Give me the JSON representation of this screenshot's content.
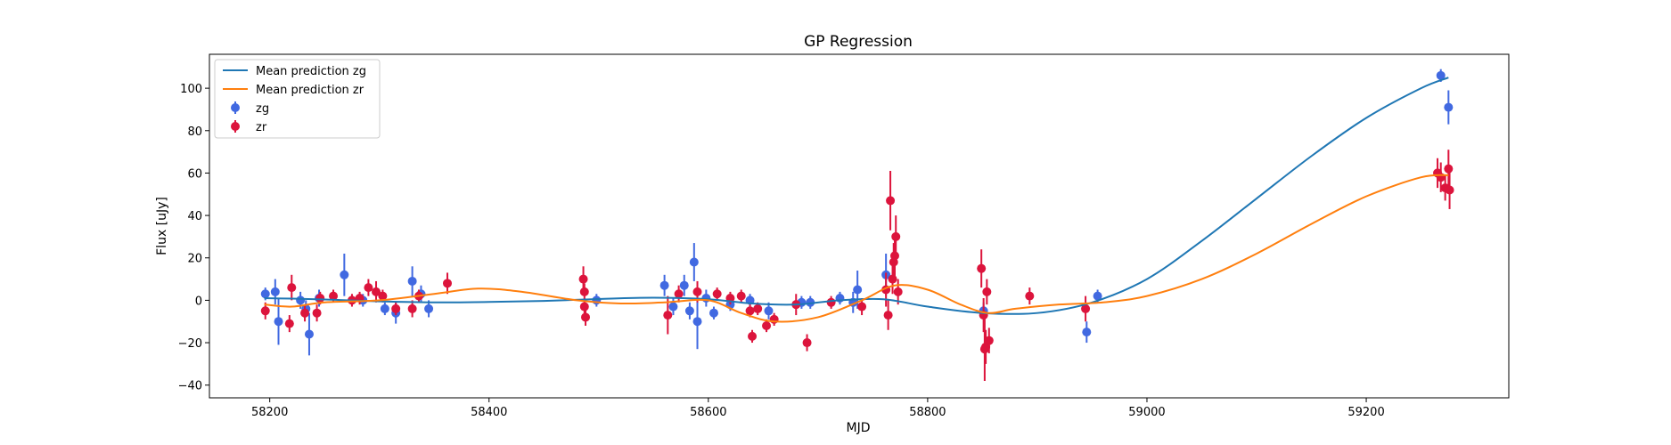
{
  "chart_data": {
    "type": "scatter",
    "title": "GP Regression",
    "xlabel": "MJD",
    "ylabel": "Flux [uJy]",
    "xlim": [
      58145,
      59330
    ],
    "ylim": [
      -46,
      116
    ],
    "xticks": [
      58200,
      58400,
      58600,
      58800,
      59000,
      59200
    ],
    "yticks": [
      -40,
      -20,
      0,
      20,
      40,
      60,
      80,
      100
    ],
    "grid": false,
    "legend_position": "top-left",
    "colors": {
      "zg_line": "#1f77b4",
      "zr_line": "#ff7f0e",
      "zg_points": "#4169e1",
      "zr_points": "#dc143c"
    },
    "legend": [
      {
        "label": "Mean prediction zg",
        "kind": "line",
        "color": "#1f77b4"
      },
      {
        "label": "Mean prediction zr",
        "kind": "line",
        "color": "#ff7f0e"
      },
      {
        "label": "zg",
        "kind": "errorbar",
        "color": "#4169e1"
      },
      {
        "label": "zr",
        "kind": "errorbar",
        "color": "#dc143c"
      }
    ],
    "lines": [
      {
        "name": "Mean prediction zg",
        "color": "#1f77b4",
        "x": [
          58195,
          58220,
          58260,
          58300,
          58350,
          58400,
          58450,
          58500,
          58550,
          58600,
          58640,
          58680,
          58720,
          58760,
          58800,
          58850,
          58900,
          58950,
          59000,
          59050,
          59100,
          59150,
          59200,
          59250,
          59275
        ],
        "y": [
          1,
          0.8,
          0.2,
          -0.5,
          -1,
          -0.8,
          -0.3,
          0.6,
          1.2,
          0.5,
          -1.5,
          -2,
          0,
          0.5,
          -3,
          -6,
          -6,
          -1,
          10,
          28,
          48,
          68,
          86,
          100,
          105
        ]
      },
      {
        "name": "Mean prediction zr",
        "color": "#ff7f0e",
        "x": [
          58195,
          58220,
          58250,
          58300,
          58350,
          58390,
          58430,
          58480,
          58520,
          58560,
          58600,
          58630,
          58660,
          58700,
          58740,
          58770,
          58800,
          58830,
          58855,
          58880,
          58920,
          58960,
          59000,
          59050,
          59100,
          59150,
          59200,
          59250,
          59275
        ],
        "y": [
          -2,
          -3,
          -1,
          0,
          3,
          5.5,
          4,
          0,
          -1.5,
          -1,
          0,
          -6,
          -10,
          -8,
          0,
          7,
          5,
          -2,
          -6,
          -4,
          -2,
          -1,
          2,
          10,
          22,
          36,
          49,
          58,
          59
        ]
      }
    ],
    "series": [
      {
        "name": "zg",
        "color": "#4169e1",
        "points": [
          {
            "x": 58196,
            "y": 3,
            "err": 3
          },
          {
            "x": 58205,
            "y": 4,
            "err": 6
          },
          {
            "x": 58208,
            "y": -10,
            "err": 11
          },
          {
            "x": 58228,
            "y": 0,
            "err": 4
          },
          {
            "x": 58233,
            "y": -4,
            "err": 4
          },
          {
            "x": 58236,
            "y": -16,
            "err": 10
          },
          {
            "x": 58245,
            "y": 1,
            "err": 4
          },
          {
            "x": 58268,
            "y": 12,
            "err": 10
          },
          {
            "x": 58285,
            "y": 0,
            "err": 3
          },
          {
            "x": 58305,
            "y": -4,
            "err": 3
          },
          {
            "x": 58315,
            "y": -6,
            "err": 5
          },
          {
            "x": 58330,
            "y": 9,
            "err": 7
          },
          {
            "x": 58338,
            "y": 3,
            "err": 4
          },
          {
            "x": 58345,
            "y": -4,
            "err": 4
          },
          {
            "x": 58498,
            "y": 0,
            "err": 3
          },
          {
            "x": 58560,
            "y": 7,
            "err": 5
          },
          {
            "x": 58568,
            "y": -3,
            "err": 4
          },
          {
            "x": 58578,
            "y": 7,
            "err": 5
          },
          {
            "x": 58583,
            "y": -5,
            "err": 4
          },
          {
            "x": 58587,
            "y": 18,
            "err": 9
          },
          {
            "x": 58590,
            "y": -10,
            "err": 13
          },
          {
            "x": 58598,
            "y": 1,
            "err": 4
          },
          {
            "x": 58605,
            "y": -6,
            "err": 3
          },
          {
            "x": 58620,
            "y": -2,
            "err": 3
          },
          {
            "x": 58638,
            "y": 0,
            "err": 3
          },
          {
            "x": 58655,
            "y": -5,
            "err": 4
          },
          {
            "x": 58685,
            "y": -1,
            "err": 3
          },
          {
            "x": 58693,
            "y": -1,
            "err": 3
          },
          {
            "x": 58720,
            "y": 1,
            "err": 3
          },
          {
            "x": 58732,
            "y": -1,
            "err": 5
          },
          {
            "x": 58736,
            "y": 5,
            "err": 9
          },
          {
            "x": 58762,
            "y": 12,
            "err": 10
          },
          {
            "x": 58851,
            "y": -5,
            "err": 4
          },
          {
            "x": 58945,
            "y": -15,
            "err": 5
          },
          {
            "x": 58955,
            "y": 2,
            "err": 3
          },
          {
            "x": 59268,
            "y": 106,
            "err": 3
          },
          {
            "x": 59275,
            "y": 91,
            "err": 8
          }
        ]
      },
      {
        "name": "zr",
        "color": "#dc143c",
        "points": [
          {
            "x": 58196,
            "y": -5,
            "err": 4
          },
          {
            "x": 58218,
            "y": -11,
            "err": 4
          },
          {
            "x": 58220,
            "y": 6,
            "err": 6
          },
          {
            "x": 58232,
            "y": -6,
            "err": 4
          },
          {
            "x": 58243,
            "y": -6,
            "err": 4
          },
          {
            "x": 58246,
            "y": 1,
            "err": 3
          },
          {
            "x": 58258,
            "y": 2,
            "err": 3
          },
          {
            "x": 58275,
            "y": 0,
            "err": 3
          },
          {
            "x": 58282,
            "y": 1,
            "err": 3
          },
          {
            "x": 58290,
            "y": 6,
            "err": 4
          },
          {
            "x": 58297,
            "y": 4,
            "err": 5
          },
          {
            "x": 58303,
            "y": 2,
            "err": 3
          },
          {
            "x": 58315,
            "y": -4,
            "err": 3
          },
          {
            "x": 58330,
            "y": -4,
            "err": 4
          },
          {
            "x": 58336,
            "y": 2,
            "err": 3
          },
          {
            "x": 58362,
            "y": 8,
            "err": 5
          },
          {
            "x": 58486,
            "y": 10,
            "err": 6
          },
          {
            "x": 58487,
            "y": 4,
            "err": 4
          },
          {
            "x": 58487,
            "y": -3,
            "err": 4
          },
          {
            "x": 58488,
            "y": -8,
            "err": 4
          },
          {
            "x": 58563,
            "y": -7,
            "err": 9
          },
          {
            "x": 58573,
            "y": 3,
            "err": 4
          },
          {
            "x": 58590,
            "y": 4,
            "err": 5
          },
          {
            "x": 58608,
            "y": 3,
            "err": 3
          },
          {
            "x": 58620,
            "y": 1,
            "err": 3
          },
          {
            "x": 58630,
            "y": 2,
            "err": 3
          },
          {
            "x": 58638,
            "y": -5,
            "err": 3
          },
          {
            "x": 58640,
            "y": -17,
            "err": 3
          },
          {
            "x": 58645,
            "y": -4,
            "err": 3
          },
          {
            "x": 58653,
            "y": -12,
            "err": 3
          },
          {
            "x": 58660,
            "y": -9,
            "err": 3
          },
          {
            "x": 58680,
            "y": -2,
            "err": 5
          },
          {
            "x": 58690,
            "y": -20,
            "err": 4
          },
          {
            "x": 58712,
            "y": -1,
            "err": 3
          },
          {
            "x": 58740,
            "y": -3,
            "err": 4
          },
          {
            "x": 58762,
            "y": 5,
            "err": 8
          },
          {
            "x": 58764,
            "y": -7,
            "err": 7
          },
          {
            "x": 58766,
            "y": 47,
            "err": 14
          },
          {
            "x": 58768,
            "y": 10,
            "err": 7
          },
          {
            "x": 58769,
            "y": 18,
            "err": 9
          },
          {
            "x": 58770,
            "y": 21,
            "err": 10
          },
          {
            "x": 58771,
            "y": 30,
            "err": 10
          },
          {
            "x": 58773,
            "y": 4,
            "err": 6
          },
          {
            "x": 58849,
            "y": 15,
            "err": 9
          },
          {
            "x": 58851,
            "y": -7,
            "err": 8
          },
          {
            "x": 58852,
            "y": -23,
            "err": 15
          },
          {
            "x": 58853,
            "y": -22,
            "err": 8
          },
          {
            "x": 58854,
            "y": 4,
            "err": 6
          },
          {
            "x": 58856,
            "y": -19,
            "err": 6
          },
          {
            "x": 58893,
            "y": 2,
            "err": 4
          },
          {
            "x": 58944,
            "y": -4,
            "err": 6
          },
          {
            "x": 59265,
            "y": 60,
            "err": 7
          },
          {
            "x": 59268,
            "y": 58,
            "err": 7
          },
          {
            "x": 59272,
            "y": 53,
            "err": 6
          },
          {
            "x": 59275,
            "y": 62,
            "err": 9
          },
          {
            "x": 59276,
            "y": 52,
            "err": 9
          }
        ]
      }
    ]
  }
}
